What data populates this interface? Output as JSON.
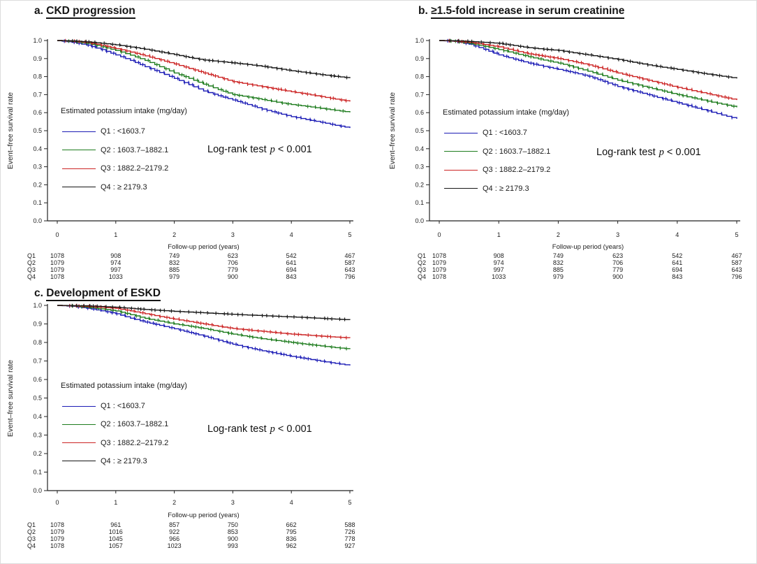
{
  "figure_titles": [
    {
      "prefix": "a.",
      "text": "CKD progression"
    },
    {
      "prefix": "b.",
      "text": "≥1.5-fold increase in serum creatinine"
    },
    {
      "prefix": "c.",
      "text": "Development of ESKD"
    }
  ],
  "axis": {
    "y_label": "Event–free survival rate",
    "x_label": "Follow-up period (years)",
    "y_ticks": [
      "1.0",
      "0.9",
      "0.8",
      "0.7",
      "0.6",
      "0.5",
      "0.4",
      "0.3",
      "0.2",
      "0.1",
      "0.0"
    ],
    "x_ticks": [
      "0",
      "1",
      "2",
      "3",
      "4",
      "5"
    ]
  },
  "legend": {
    "title": "Estimated potassium intake (mg/day)",
    "items": [
      {
        "name": "Q1",
        "label": "Q1 : <1603.7",
        "color": "#1b1bb5"
      },
      {
        "name": "Q2",
        "label": "Q2 : 1603.7–1882.1",
        "color": "#1e7c1e"
      },
      {
        "name": "Q3",
        "label": "Q3 : 1882.2–2179.2",
        "color": "#cc2424"
      },
      {
        "name": "Q4",
        "label": "Q4 : ≥ 2179.3",
        "color": "#161616"
      }
    ]
  },
  "logrank": {
    "label": "Log-rank test",
    "p": "p",
    "value": "< 0.001"
  },
  "chart_data": [
    {
      "type": "line",
      "title": "a. CKD progression",
      "xlabel": "Follow-up period (years)",
      "ylabel": "Event–free survival rate",
      "xlim": [
        0,
        5
      ],
      "ylim": [
        0.0,
        1.0
      ],
      "grid": false,
      "legend_position": "inside lower-left",
      "annotation": "Log-rank test p < 0.001",
      "x": [
        0,
        0.25,
        0.5,
        0.75,
        1,
        1.25,
        1.5,
        1.75,
        2,
        2.25,
        2.5,
        2.75,
        3,
        3.25,
        3.5,
        3.75,
        4,
        4.25,
        4.5,
        4.75,
        5
      ],
      "series": [
        {
          "name": "Q1 : <1603.7",
          "color": "#1b1bb5",
          "values": [
            1.0,
            0.99,
            0.975,
            0.95,
            0.92,
            0.89,
            0.855,
            0.823,
            0.79,
            0.755,
            0.72,
            0.694,
            0.67,
            0.645,
            0.62,
            0.598,
            0.578,
            0.562,
            0.547,
            0.53,
            0.515
          ]
        },
        {
          "name": "Q2 : 1603.7–1882.1",
          "color": "#1e7c1e",
          "values": [
            1.0,
            0.995,
            0.985,
            0.966,
            0.945,
            0.919,
            0.89,
            0.855,
            0.82,
            0.79,
            0.758,
            0.728,
            0.7,
            0.687,
            0.673,
            0.658,
            0.645,
            0.635,
            0.624,
            0.613,
            0.602
          ]
        },
        {
          "name": "Q3 : 1882.2–2179.2",
          "color": "#cc2424",
          "values": [
            1.0,
            0.997,
            0.99,
            0.974,
            0.955,
            0.936,
            0.915,
            0.893,
            0.87,
            0.845,
            0.82,
            0.796,
            0.772,
            0.758,
            0.744,
            0.73,
            0.716,
            0.703,
            0.689,
            0.675,
            0.662
          ]
        },
        {
          "name": "Q4 : ≥ 2179.3",
          "color": "#161616",
          "values": [
            1.0,
            0.998,
            0.993,
            0.985,
            0.976,
            0.964,
            0.952,
            0.937,
            0.922,
            0.906,
            0.892,
            0.884,
            0.876,
            0.867,
            0.857,
            0.845,
            0.832,
            0.822,
            0.811,
            0.801,
            0.792
          ]
        }
      ],
      "risk_table": {
        "x": [
          0,
          1,
          2,
          3,
          4,
          5
        ],
        "rows": [
          {
            "label": "Q1",
            "counts": [
              1078,
              908,
              749,
              623,
              542,
              467
            ]
          },
          {
            "label": "Q2",
            "counts": [
              1079,
              974,
              832,
              706,
              641,
              587
            ]
          },
          {
            "label": "Q3",
            "counts": [
              1079,
              997,
              885,
              779,
              694,
              643
            ]
          },
          {
            "label": "Q4",
            "counts": [
              1078,
              1033,
              979,
              900,
              843,
              796
            ]
          }
        ]
      }
    },
    {
      "type": "line",
      "title": "b. ≥1.5-fold increase in serum creatinine",
      "xlabel": "Follow-up period (years)",
      "ylabel": "Event–free survival rate",
      "xlim": [
        0,
        5
      ],
      "ylim": [
        0.0,
        1.0
      ],
      "grid": false,
      "legend_position": "inside lower-left",
      "annotation": "Log-rank test p < 0.001",
      "x": [
        0,
        0.25,
        0.5,
        0.75,
        1,
        1.25,
        1.5,
        1.75,
        2,
        2.25,
        2.5,
        2.75,
        3,
        3.25,
        3.5,
        3.75,
        4,
        4.25,
        4.5,
        4.75,
        5
      ],
      "series": [
        {
          "name": "Q1 : <1603.7",
          "color": "#1b1bb5",
          "values": [
            1.0,
            0.995,
            0.98,
            0.951,
            0.92,
            0.897,
            0.875,
            0.857,
            0.84,
            0.822,
            0.802,
            0.774,
            0.745,
            0.722,
            0.7,
            0.677,
            0.655,
            0.632,
            0.61,
            0.587,
            0.566
          ]
        },
        {
          "name": "Q2 : 1603.7–1882.1",
          "color": "#1e7c1e",
          "values": [
            1.0,
            0.996,
            0.985,
            0.968,
            0.95,
            0.93,
            0.91,
            0.892,
            0.875,
            0.853,
            0.83,
            0.805,
            0.78,
            0.76,
            0.74,
            0.72,
            0.7,
            0.682,
            0.664,
            0.647,
            0.63
          ]
        },
        {
          "name": "Q3 : 1882.2–2179.2",
          "color": "#cc2424",
          "values": [
            1.0,
            0.997,
            0.99,
            0.978,
            0.965,
            0.945,
            0.926,
            0.913,
            0.9,
            0.883,
            0.865,
            0.843,
            0.82,
            0.8,
            0.78,
            0.76,
            0.74,
            0.722,
            0.705,
            0.687,
            0.67
          ]
        },
        {
          "name": "Q4 : ≥ 2179.3",
          "color": "#161616",
          "values": [
            1.0,
            0.999,
            0.995,
            0.99,
            0.984,
            0.972,
            0.96,
            0.952,
            0.945,
            0.932,
            0.92,
            0.908,
            0.895,
            0.88,
            0.865,
            0.852,
            0.84,
            0.827,
            0.814,
            0.802,
            0.79
          ]
        }
      ],
      "risk_table": {
        "x": [
          0,
          1,
          2,
          3,
          4,
          5
        ],
        "rows": [
          {
            "label": "Q1",
            "counts": [
              1078,
              908,
              749,
              623,
              542,
              467
            ]
          },
          {
            "label": "Q2",
            "counts": [
              1079,
              974,
              832,
              706,
              641,
              587
            ]
          },
          {
            "label": "Q3",
            "counts": [
              1079,
              997,
              885,
              779,
              694,
              643
            ]
          },
          {
            "label": "Q4",
            "counts": [
              1078,
              1033,
              979,
              900,
              843,
              796
            ]
          }
        ]
      }
    },
    {
      "type": "line",
      "title": "c. Development of ESKD",
      "xlabel": "Follow-up period (years)",
      "ylabel": "Event–free survival rate",
      "xlim": [
        0,
        5
      ],
      "ylim": [
        0.0,
        1.0
      ],
      "grid": false,
      "legend_position": "inside lower-left",
      "annotation": "Log-rank test p < 0.001",
      "x": [
        0,
        0.25,
        0.5,
        0.75,
        1,
        1.25,
        1.5,
        1.75,
        2,
        2.25,
        2.5,
        2.75,
        3,
        3.25,
        3.5,
        3.75,
        4,
        4.25,
        4.5,
        4.75,
        5
      ],
      "series": [
        {
          "name": "Q1 : <1603.7",
          "color": "#1b1bb5",
          "values": [
            1.0,
            0.995,
            0.985,
            0.971,
            0.955,
            0.931,
            0.91,
            0.892,
            0.874,
            0.854,
            0.834,
            0.812,
            0.79,
            0.772,
            0.755,
            0.74,
            0.725,
            0.712,
            0.699,
            0.687,
            0.676
          ]
        },
        {
          "name": "Q2 : 1603.7–1882.1",
          "color": "#1e7c1e",
          "values": [
            1.0,
            0.997,
            0.99,
            0.981,
            0.97,
            0.95,
            0.93,
            0.915,
            0.9,
            0.888,
            0.875,
            0.86,
            0.845,
            0.832,
            0.82,
            0.81,
            0.8,
            0.79,
            0.781,
            0.772,
            0.764
          ]
        },
        {
          "name": "Q3 : 1882.2–2179.2",
          "color": "#cc2424",
          "values": [
            1.0,
            0.998,
            0.995,
            0.99,
            0.984,
            0.97,
            0.955,
            0.94,
            0.926,
            0.913,
            0.9,
            0.887,
            0.875,
            0.867,
            0.86,
            0.852,
            0.845,
            0.84,
            0.834,
            0.829,
            0.824
          ]
        },
        {
          "name": "Q4 : ≥ 2179.3",
          "color": "#161616",
          "values": [
            1.0,
            0.999,
            0.998,
            0.994,
            0.99,
            0.984,
            0.978,
            0.973,
            0.968,
            0.964,
            0.96,
            0.956,
            0.952,
            0.948,
            0.945,
            0.941,
            0.938,
            0.934,
            0.93,
            0.926,
            0.922
          ]
        }
      ],
      "risk_table": {
        "x": [
          0,
          1,
          2,
          3,
          4,
          5
        ],
        "rows": [
          {
            "label": "Q1",
            "counts": [
              1078,
              961,
              857,
              750,
              662,
              588
            ]
          },
          {
            "label": "Q2",
            "counts": [
              1079,
              1016,
              922,
              853,
              795,
              726
            ]
          },
          {
            "label": "Q3",
            "counts": [
              1079,
              1045,
              966,
              900,
              836,
              778
            ]
          },
          {
            "label": "Q4",
            "counts": [
              1078,
              1057,
              1023,
              993,
              962,
              927
            ]
          }
        ]
      }
    }
  ]
}
